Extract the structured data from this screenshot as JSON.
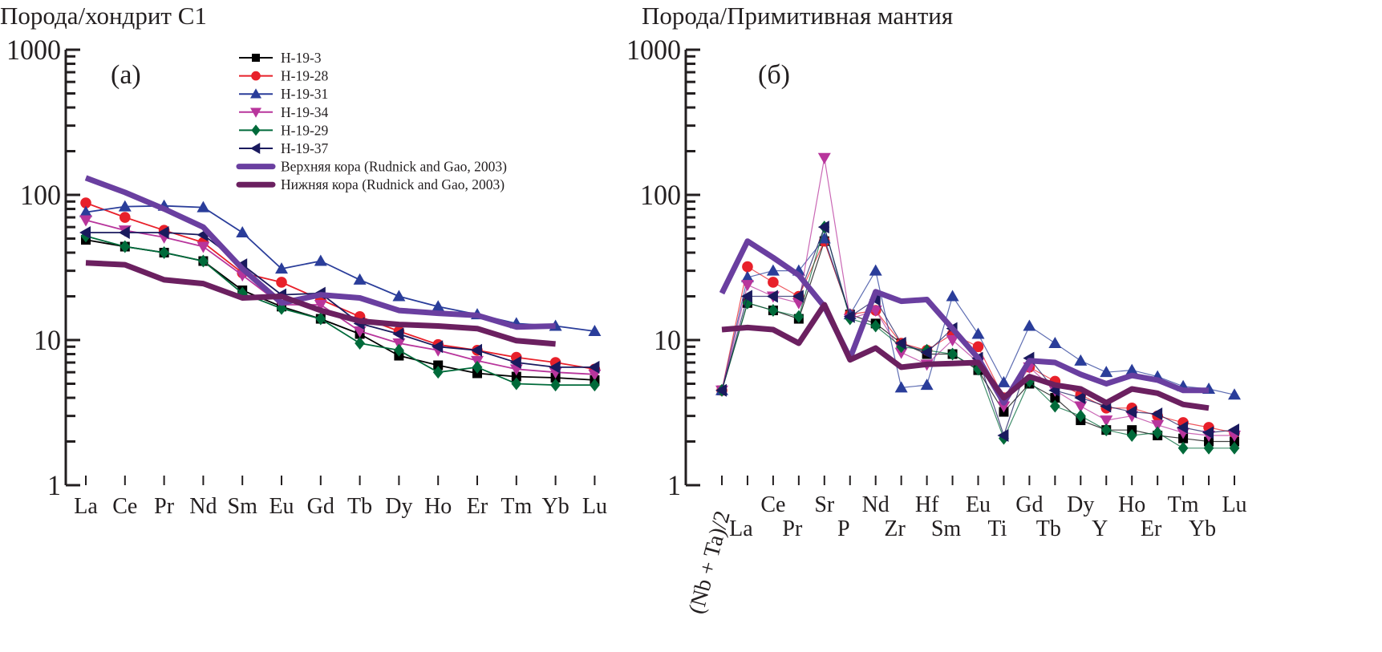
{
  "series_styles": [
    {
      "name": "H-19-3",
      "color": "#000000",
      "marker": "square"
    },
    {
      "name": "H-19-28",
      "color": "#e8202a",
      "marker": "circle"
    },
    {
      "name": "H-19-31",
      "color": "#2a3d9a",
      "marker": "triangle-up"
    },
    {
      "name": "H-19-34",
      "color": "#b8359c",
      "marker": "triangle-down"
    },
    {
      "name": "H-19-29",
      "color": "#006a3a",
      "marker": "diamond"
    },
    {
      "name": "H-19-37",
      "color": "#1a1a5e",
      "marker": "triangle-left"
    },
    {
      "name": "Верхняя кора (Rudnick and Gao, 2003)",
      "color": "#6a3fa0",
      "marker": "none"
    },
    {
      "name": "Нижняя кора (Rudnick and Gao, 2003)",
      "color": "#6b2060",
      "marker": "none"
    }
  ],
  "chart_data": [
    {
      "type": "line",
      "title": "Порода/хондрит C1",
      "panel_label": "(a)",
      "yscale": "log",
      "ylim": [
        1,
        1000
      ],
      "yticks": [
        "1",
        "10",
        "100",
        "1000"
      ],
      "grid": false,
      "legend": "top-center",
      "categories": [
        "La",
        "Ce",
        "Pr",
        "Nd",
        "Sm",
        "Eu",
        "Gd",
        "Tb",
        "Dy",
        "Ho",
        "Er",
        "Tm",
        "Yb",
        "Lu"
      ],
      "series": [
        {
          "name": "H-19-3",
          "values": [
            49,
            44,
            40,
            35,
            22,
            17,
            14,
            11,
            7.8,
            6.7,
            5.9,
            5.6,
            5.5,
            5.3
          ]
        },
        {
          "name": "H-19-28",
          "values": [
            88,
            70,
            57,
            47,
            29,
            25,
            19,
            14.5,
            11.5,
            9.3,
            8.5,
            7.6,
            7.0,
            6.3
          ]
        },
        {
          "name": "H-19-31",
          "values": [
            76,
            83,
            84,
            82,
            55,
            31,
            35,
            26,
            20,
            17,
            15,
            13,
            12.5,
            11.5
          ]
        },
        {
          "name": "H-19-34",
          "values": [
            67,
            57,
            51,
            44,
            28,
            17.5,
            17.5,
            11.5,
            9.5,
            8.5,
            7.2,
            6.3,
            6.0,
            5.8
          ]
        },
        {
          "name": "H-19-29",
          "values": [
            52,
            44,
            40,
            35,
            21,
            16.5,
            14,
            9.5,
            8.5,
            6.0,
            6.5,
            5.0,
            4.9,
            4.9
          ]
        },
        {
          "name": "H-19-37",
          "values": [
            55,
            55,
            55,
            53,
            33,
            20.5,
            21,
            13,
            11,
            9,
            8.5,
            7,
            6.5,
            6.5
          ]
        },
        {
          "name": "Верхняя кора (Rudnick and Gao, 2003)",
          "values": [
            131,
            104,
            80,
            60,
            31,
            18,
            20.5,
            19.5,
            16,
            15.3,
            14.8,
            12.3,
            12.5,
            null
          ]
        },
        {
          "name": "Нижняя кора (Rudnick and Gao, 2003)",
          "values": [
            34,
            33,
            26,
            24.5,
            19.5,
            20,
            16,
            13.5,
            12.8,
            12.5,
            12,
            9.9,
            9.4,
            null
          ]
        }
      ]
    },
    {
      "type": "line",
      "title": "Порода/Примитивная мантия",
      "panel_label": "(б)",
      "yscale": "log",
      "ylim": [
        1,
        1000
      ],
      "yticks": [
        "1",
        "10",
        "100",
        "1000"
      ],
      "grid": false,
      "categories": [
        "(Nb + Ta)/2",
        "La",
        "Ce",
        "Pr",
        "Sr",
        "P",
        "Nd",
        "Zr",
        "Hf",
        "Sm",
        "Eu",
        "Ti",
        "Gd",
        "Tb",
        "Dy",
        "Y",
        "Ho",
        "Er",
        "Tm",
        "Yb",
        "Lu"
      ],
      "series": [
        {
          "name": "H-19-3",
          "values": [
            4.5,
            18,
            16,
            14,
            48,
            15,
            13,
            9.5,
            8,
            8,
            6.2,
            3.2,
            5,
            4,
            2.8,
            2.4,
            2.4,
            2.2,
            2.1,
            2.0,
            2.0
          ]
        },
        {
          "name": "H-19-28",
          "values": [
            4.5,
            32,
            25,
            20,
            48,
            15,
            16,
            9.5,
            8.5,
            11,
            9,
            4,
            6.5,
            5.2,
            4.2,
            3.4,
            3.4,
            3.0,
            2.7,
            2.5,
            2.3
          ]
        },
        {
          "name": "H-19-31",
          "values": [
            4.5,
            27,
            30,
            30,
            50,
            15,
            30,
            4.7,
            4.9,
            20,
            11,
            5.1,
            12.5,
            9.5,
            7.2,
            6,
            6.2,
            5.6,
            4.8,
            4.6,
            4.2
          ]
        },
        {
          "name": "H-19-34",
          "values": [
            4.5,
            24,
            20,
            18,
            180,
            14,
            16,
            8.2,
            6.8,
            10,
            7,
            3.5,
            6.5,
            4.5,
            3.5,
            2.8,
            3.0,
            2.6,
            2.3,
            2.2,
            2.2
          ]
        },
        {
          "name": "H-19-29",
          "values": [
            4.5,
            18,
            16,
            14.5,
            60,
            14,
            12.5,
            9,
            8.5,
            8,
            6.3,
            2.1,
            5.2,
            3.5,
            3.0,
            2.4,
            2.2,
            2.3,
            1.8,
            1.8,
            1.8
          ]
        },
        {
          "name": "H-19-37",
          "values": [
            4.5,
            20,
            20,
            20,
            60,
            14.5,
            19,
            9.5,
            8.2,
            12,
            7.5,
            2.2,
            7.5,
            4.5,
            4.0,
            3.5,
            3.2,
            3.1,
            2.5,
            2.3,
            2.4
          ]
        },
        {
          "name": "Верхняя кора (Rudnick and Gao, 2003)",
          "values": [
            21,
            48,
            37,
            28,
            17,
            7.5,
            21.5,
            18.5,
            19,
            12,
            7.5,
            3.7,
            7.2,
            7,
            5.8,
            5,
            5.7,
            5.3,
            4.5,
            4.5,
            null
          ]
        },
        {
          "name": "Нижняя кора (Rudnick and Gao, 2003)",
          "values": [
            11.8,
            12.2,
            11.8,
            9.5,
            17.5,
            7.3,
            8.8,
            6.5,
            6.8,
            6.9,
            7.0,
            4.0,
            5.6,
            4.9,
            4.6,
            3.7,
            4.6,
            4.3,
            3.6,
            3.4,
            null
          ]
        }
      ]
    }
  ]
}
